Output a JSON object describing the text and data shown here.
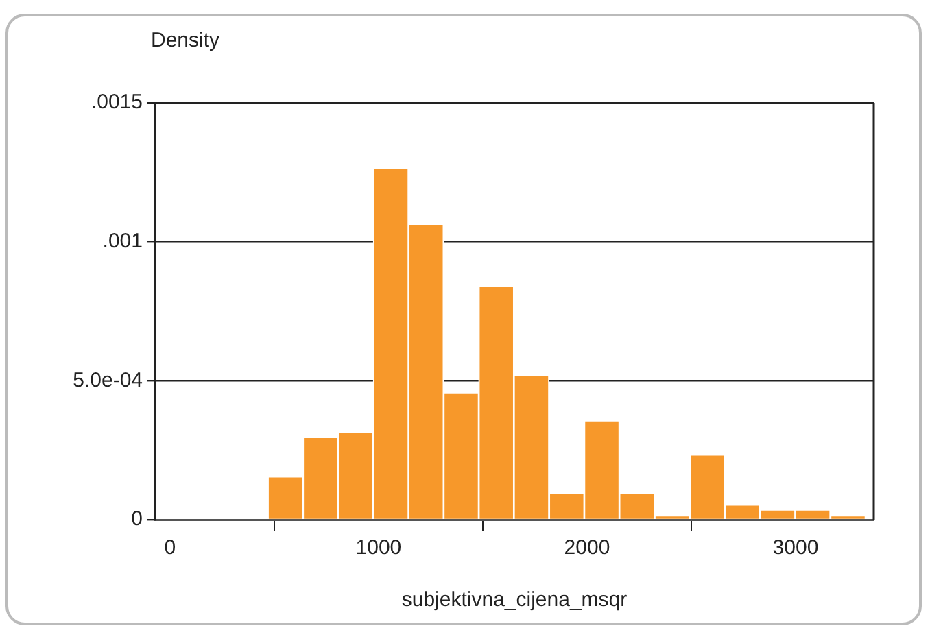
{
  "chart_data": {
    "type": "histogram",
    "xlabel": "subjektivna_cijena_msqr",
    "ylabel": "Density",
    "bins": [
      469,
      638,
      806,
      975,
      1144,
      1312,
      1481,
      1649,
      1818,
      1987,
      2155,
      2324,
      2493,
      2661,
      2830,
      2998,
      3167,
      3336
    ],
    "values": [
      0.000155,
      0.000297,
      0.000316,
      0.001265,
      0.001064,
      0.000458,
      0.000842,
      0.000519,
      9.5e-05,
      0.000357,
      9.5e-05,
      1.5e-05,
      0.000234,
      5.4e-05,
      3.6e-05,
      3.6e-05,
      1.5e-05
    ],
    "color": "#f7982a",
    "xlim": [
      -72,
      3375
    ],
    "xticks": [
      0,
      1000,
      2000,
      3000
    ],
    "ylim": [
      0,
      0.0015
    ],
    "yticks": [
      0,
      {
        "value": 0.0005,
        "label": "5.0e-04"
      },
      {
        "value": 0.001,
        "label": ".001"
      },
      {
        "value": 0.0015,
        "label": ".0015"
      }
    ],
    "grid": "y"
  }
}
